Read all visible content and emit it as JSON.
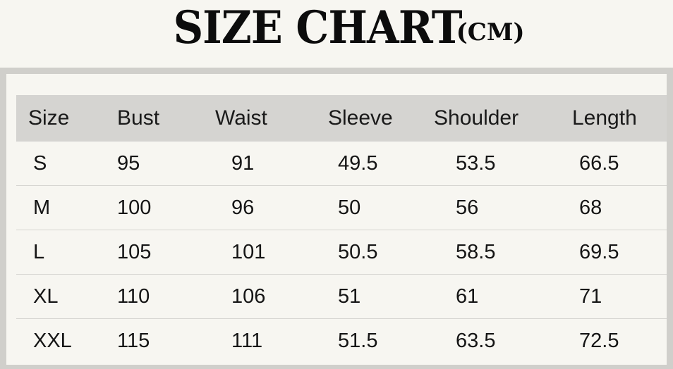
{
  "title": {
    "main": "SIZE CHART",
    "unit": "(CM)"
  },
  "table": {
    "headers": [
      "Size",
      "Bust",
      "Waist",
      "Sleeve",
      "Shoulder",
      "Length"
    ],
    "rows": [
      [
        "S",
        "95",
        "91",
        "49.5",
        "53.5",
        "66.5"
      ],
      [
        "M",
        "100",
        "96",
        "50",
        "56",
        "68"
      ],
      [
        "L",
        "105",
        "101",
        "50.5",
        "58.5",
        "69.5"
      ],
      [
        "XL",
        "110",
        "106",
        "51",
        "61",
        "71"
      ],
      [
        "XXL",
        "115",
        "111",
        "51.5",
        "63.5",
        "72.5"
      ]
    ]
  }
}
